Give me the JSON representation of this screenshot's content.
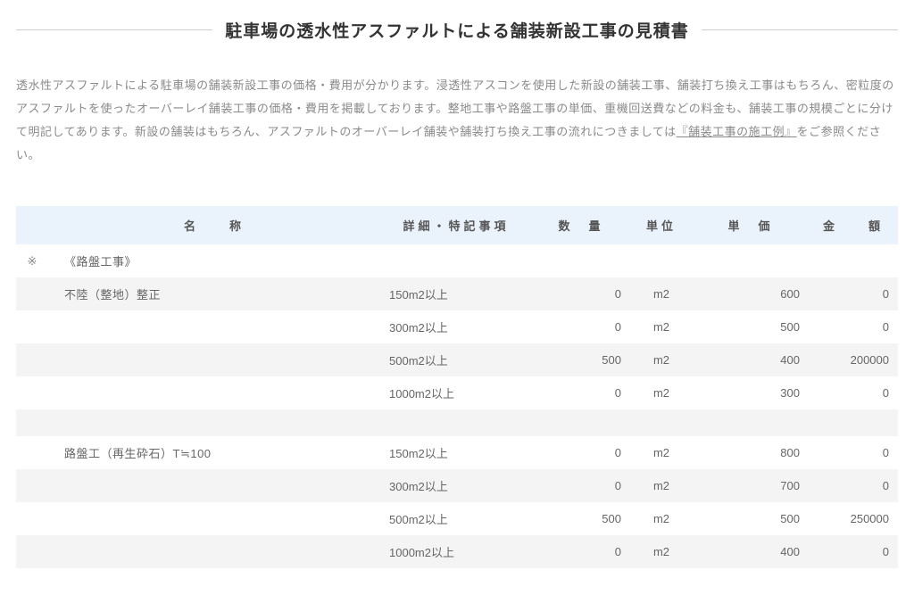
{
  "title": "駐車場の透水性アスファルトによる舗装新設工事の見積書",
  "intro_prefix": "透水性アスファルトによる駐車場の舗装新設工事の価格・費用が分かります。浸透性アスコンを使用した新設の舗装工事、舗装打ち換え工事はもちろん、密粒度のアスファルトを使ったオーバーレイ舗装工事の価格・費用を掲載しております。整地工事や路盤工事の単価、重機回送費などの料金も、舗装工事の規模ごとに分けて明記してあります。新設の舗装はもちろん、アスファルトのオーバーレイ舗装や舗装打ち換え工事の流れにつきましては",
  "intro_link": "『舗装工事の施工例』",
  "intro_suffix": "をご参照ください。",
  "columns": {
    "name": "名　　称",
    "detail": "詳細・特記事項",
    "qty": "数　量",
    "unit": "単位",
    "price": "単　価",
    "amount": "金　　額"
  },
  "mark_symbol": "※",
  "rows": [
    {
      "type": "section",
      "parity": "odd",
      "mark": true,
      "name": "《路盤工事》"
    },
    {
      "type": "data",
      "parity": "even",
      "name": "不陸（整地）整正",
      "detail": "150m2以上",
      "qty": "0",
      "unit": "m2",
      "price": "600",
      "amount": "0"
    },
    {
      "type": "data",
      "parity": "odd",
      "name": "",
      "detail": "300m2以上",
      "qty": "0",
      "unit": "m2",
      "price": "500",
      "amount": "0"
    },
    {
      "type": "data",
      "parity": "even",
      "name": "",
      "detail": "500m2以上",
      "qty": "500",
      "unit": "m2",
      "price": "400",
      "amount": "200000"
    },
    {
      "type": "data",
      "parity": "odd",
      "name": "",
      "detail": "1000m2以上",
      "qty": "0",
      "unit": "m2",
      "price": "300",
      "amount": "0"
    },
    {
      "type": "spacer",
      "parity": "even"
    },
    {
      "type": "data",
      "parity": "odd",
      "name": "路盤工（再生砕石）T≒100",
      "detail": "150m2以上",
      "qty": "0",
      "unit": "m2",
      "price": "800",
      "amount": "0"
    },
    {
      "type": "data",
      "parity": "even",
      "name": "",
      "detail": "300m2以上",
      "qty": "0",
      "unit": "m2",
      "price": "700",
      "amount": "0"
    },
    {
      "type": "data",
      "parity": "odd",
      "name": "",
      "detail": "500m2以上",
      "qty": "500",
      "unit": "m2",
      "price": "500",
      "amount": "250000"
    },
    {
      "type": "data",
      "parity": "even",
      "name": "",
      "detail": "1000m2以上",
      "qty": "0",
      "unit": "m2",
      "price": "400",
      "amount": "0"
    },
    {
      "type": "spacer",
      "parity": "odd"
    }
  ],
  "colors": {
    "header_bg": "#eaf3fb",
    "row_even_bg": "#f4f4f4",
    "row_odd_bg": "#ffffff",
    "text": "#666666",
    "intro_text": "#8a8a8a",
    "rule": "#cccccc"
  }
}
